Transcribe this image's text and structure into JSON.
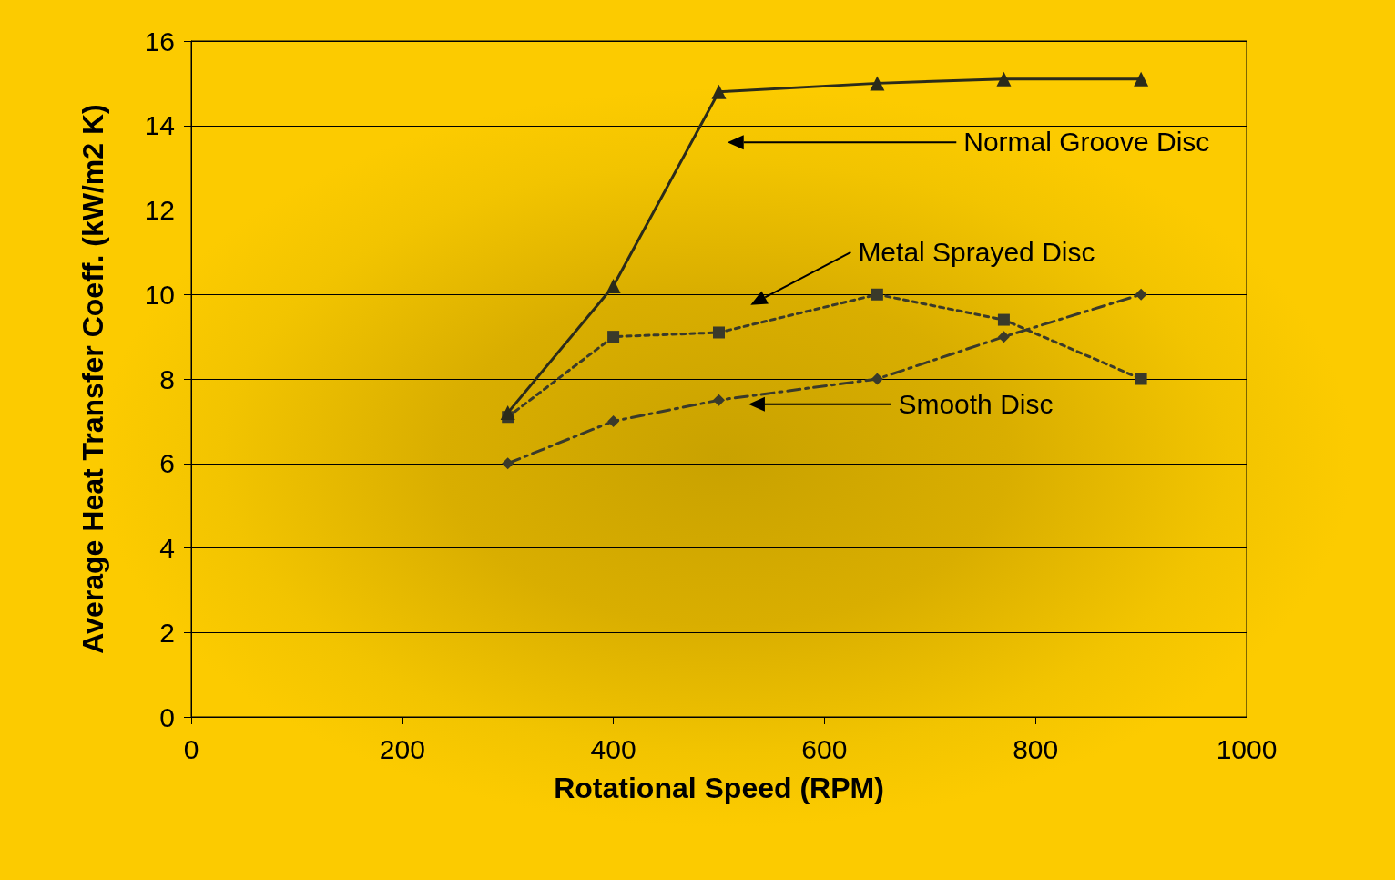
{
  "chart_data": {
    "type": "line",
    "xlabel": "Rotational Speed (RPM)",
    "ylabel": "Average Heat Transfer Coeff. (kW/m2 K)",
    "x": [
      300,
      400,
      500,
      650,
      770,
      900
    ],
    "series": [
      {
        "name": "Normal Groove Disc",
        "color": "#2b2b1a",
        "values": [
          7.2,
          10.2,
          14.8,
          15.0,
          15.1,
          15.1
        ],
        "marker": "triangle",
        "line_style": "solid"
      },
      {
        "name": "Metal Sprayed Disc",
        "color": "#3a3a2a",
        "values": [
          7.1,
          9.0,
          9.1,
          10.0,
          9.4,
          8.0
        ],
        "marker": "square",
        "line_style": "dotted"
      },
      {
        "name": "Smooth Disc",
        "color": "#3a3a2a",
        "values": [
          6.0,
          7.0,
          7.5,
          8.0,
          9.0,
          10.0
        ],
        "marker": "diamond",
        "line_style": "dashed"
      }
    ],
    "xlim": [
      0,
      1000
    ],
    "xticks": [
      0,
      200,
      400,
      600,
      800,
      1000
    ],
    "ylim": [
      0,
      16
    ],
    "yticks": [
      0,
      2,
      4,
      6,
      8,
      10,
      12,
      14,
      16
    ],
    "grid": "y",
    "legend": false
  }
}
